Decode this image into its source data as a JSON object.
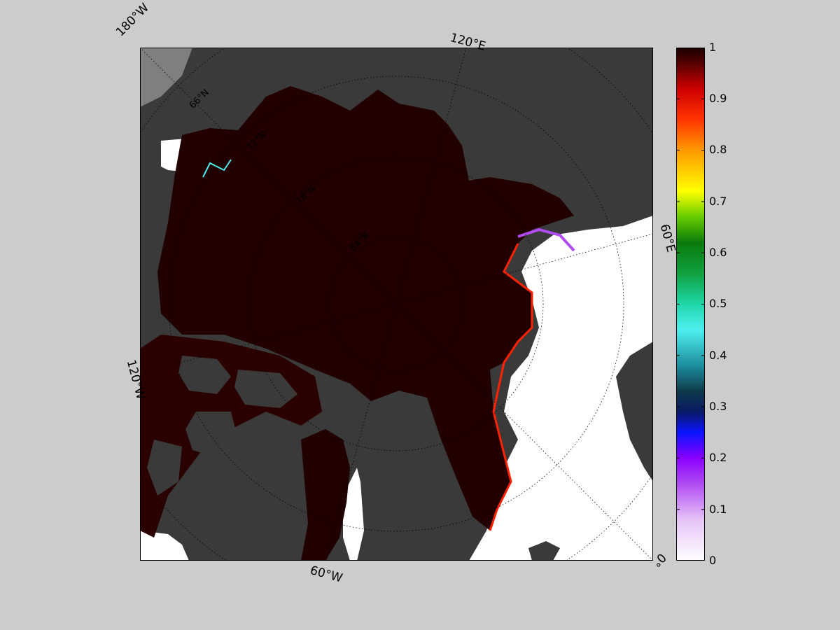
{
  "map": {
    "projection": "north-polar-stereographic",
    "colors": {
      "land": "#3a3a3a",
      "land_light": "#7f7f7f",
      "open_water": "#ffffff",
      "full_ice": "#220000",
      "background": "#cccccc"
    },
    "longitude_labels": {
      "lon_180w": "180°W",
      "lon_120e": "120°E",
      "lon_60e": "60°E",
      "lon_0": "0°",
      "lon_60w": "60°W",
      "lon_120w": "120°W"
    },
    "latitude_labels": {
      "lat_66n": "66°N",
      "lat_72n": "72°N",
      "lat_78n": "78°N",
      "lat_84n": "84°N"
    }
  },
  "colorbar": {
    "min": 0,
    "max": 1,
    "ticks": [
      "1",
      "0.9",
      "0.8",
      "0.7",
      "0.6",
      "0.5",
      "0.4",
      "0.3",
      "0.2",
      "0.1",
      "0"
    ],
    "colormap_stops": [
      {
        "value": 0.0,
        "color": "#ffffff"
      },
      {
        "value": 0.08,
        "color": "#e6c3f7"
      },
      {
        "value": 0.15,
        "color": "#b04cf2"
      },
      {
        "value": 0.2,
        "color": "#8a00ff"
      },
      {
        "value": 0.25,
        "color": "#0a14ff"
      },
      {
        "value": 0.29,
        "color": "#0a1a66"
      },
      {
        "value": 0.33,
        "color": "#0e3a4a"
      },
      {
        "value": 0.38,
        "color": "#1c8c9c"
      },
      {
        "value": 0.45,
        "color": "#4ef0f0"
      },
      {
        "value": 0.5,
        "color": "#1fd6a8"
      },
      {
        "value": 0.56,
        "color": "#10a040"
      },
      {
        "value": 0.62,
        "color": "#0a7a0a"
      },
      {
        "value": 0.67,
        "color": "#66cc00"
      },
      {
        "value": 0.72,
        "color": "#ffff00"
      },
      {
        "value": 0.8,
        "color": "#ff9900"
      },
      {
        "value": 0.86,
        "color": "#ff3300"
      },
      {
        "value": 0.92,
        "color": "#cc0000"
      },
      {
        "value": 0.97,
        "color": "#550000"
      },
      {
        "value": 1.0,
        "color": "#1a0000"
      }
    ]
  }
}
